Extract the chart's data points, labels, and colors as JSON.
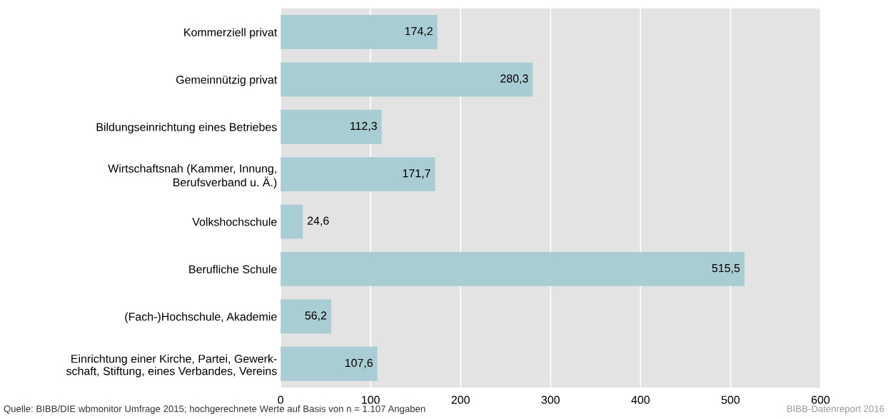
{
  "chart_data": {
    "type": "bar",
    "orientation": "horizontal",
    "categories": [
      "Kommerziell privat",
      "Gemeinnützig privat",
      "Bildungseinrichtung eines Betriebes",
      "Wirtschaftsnah (Kammer, Innung,\nBerufsverband u. Ä.)",
      "Volkshochschule",
      "Berufliche Schule",
      "(Fach-)Hochschule, Akademie",
      "Einrichtung einer Kirche, Partei, Gewerk-\nschaft, Stiftung, eines Verbandes, Vereins"
    ],
    "values": [
      174.2,
      280.3,
      112.3,
      171.7,
      24.6,
      515.5,
      56.2,
      107.6
    ],
    "value_labels": [
      "174,2",
      "280,3",
      "112,3",
      "171,7",
      "24,6",
      "515,5",
      "56,2",
      "107,6"
    ],
    "color": "#a8cdd3",
    "xlim": [
      0,
      600
    ],
    "xticks": [
      0,
      100,
      200,
      300,
      400,
      500,
      600
    ],
    "grid": "x",
    "annotations": [
      "Quelle: BIBB/DIE wbmonitor Umfrage 2015; hochgerechnete Werte auf Basis von n = 1.107 Angaben",
      "BIBB-Datenreport 2016"
    ]
  }
}
